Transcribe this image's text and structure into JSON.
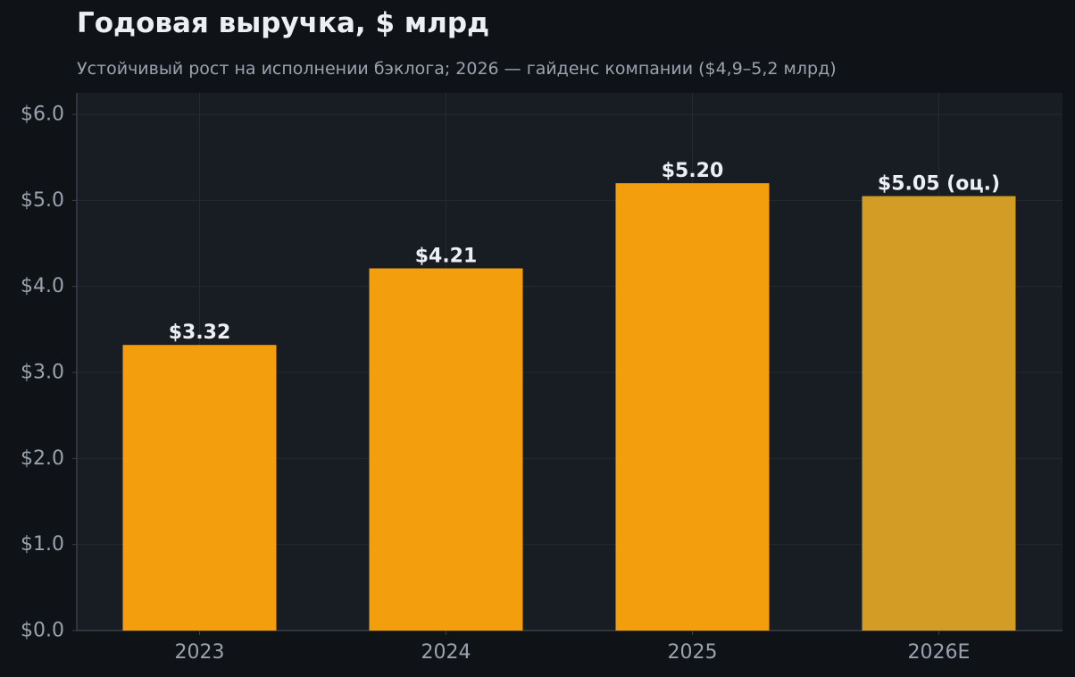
{
  "chart_data": {
    "type": "bar",
    "title": "Годовая выручка, $ млрд",
    "subtitle": "Устойчивый рост на исполнении бэклога; 2026 — гайденс компании ($4,9–5,2 млрд)",
    "categories": [
      "2023",
      "2024",
      "2025",
      "2026E"
    ],
    "values": [
      3.32,
      4.21,
      5.2,
      5.05
    ],
    "data_labels": [
      "$3.32",
      "$4.21",
      "$5.20",
      "$5.05 (оц.)"
    ],
    "ylim": [
      0,
      6.25
    ],
    "yticks": [
      0,
      1,
      2,
      3,
      4,
      5,
      6
    ],
    "ytick_labels": [
      "$0.0",
      "$1.0",
      "$2.0",
      "$3.0",
      "$4.0",
      "$5.0",
      "$6.0"
    ],
    "xlabel": "",
    "ylabel": "",
    "grid": true,
    "bar_colors": [
      "#f39f0d",
      "#f39f0d",
      "#f39f0d",
      "#d39c24"
    ],
    "colors": {
      "page_background": "#0f1317",
      "plot_background": "#181c23",
      "grid": "#252a33",
      "axis": "#3a3f48",
      "tick_text": "#9aa3ad",
      "label_text": "#eceff3"
    }
  }
}
